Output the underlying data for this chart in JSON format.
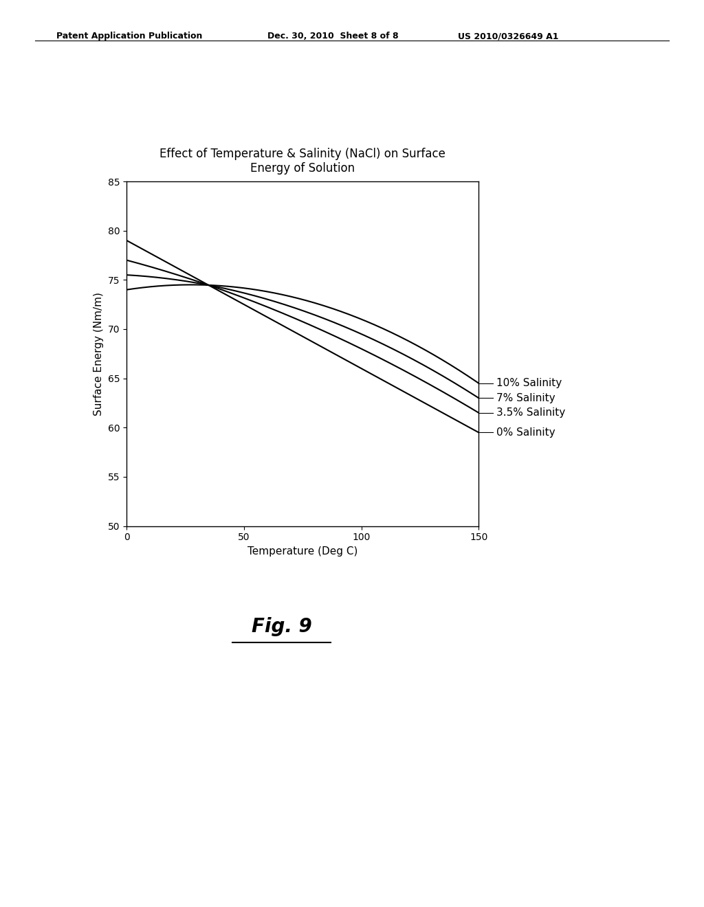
{
  "title_line1": "Effect of Temperature & Salinity (NaCl) on Surface",
  "title_line2": "Energy of Solution",
  "xlabel": "Temperature (Deg C)",
  "ylabel": "Surface Energy (Nm/m)",
  "xlim": [
    0,
    150
  ],
  "ylim": [
    50,
    85
  ],
  "xticks": [
    0,
    50,
    100,
    150
  ],
  "yticks": [
    50,
    55,
    60,
    65,
    70,
    75,
    80,
    85
  ],
  "series_params": [
    [
      79.0,
      59.5,
      0.0
    ],
    [
      77.0,
      61.5,
      0.4
    ],
    [
      75.5,
      63.0,
      0.7
    ],
    [
      74.0,
      64.5,
      1.0
    ]
  ],
  "label_names": [
    "0% Salinity",
    "3.5% Salinity",
    "7% Salinity",
    "10% Salinity"
  ],
  "line_color": "#000000",
  "background_color": "#ffffff",
  "title_fontsize": 12,
  "label_fontsize": 11,
  "tick_fontsize": 10,
  "annotation_fontsize": 11,
  "header_left": "Patent Application Publication",
  "header_center": "Dec. 30, 2010  Sheet 8 of 8",
  "header_right": "US 2010/0326649 A1",
  "fig_label": "Fig. 9"
}
